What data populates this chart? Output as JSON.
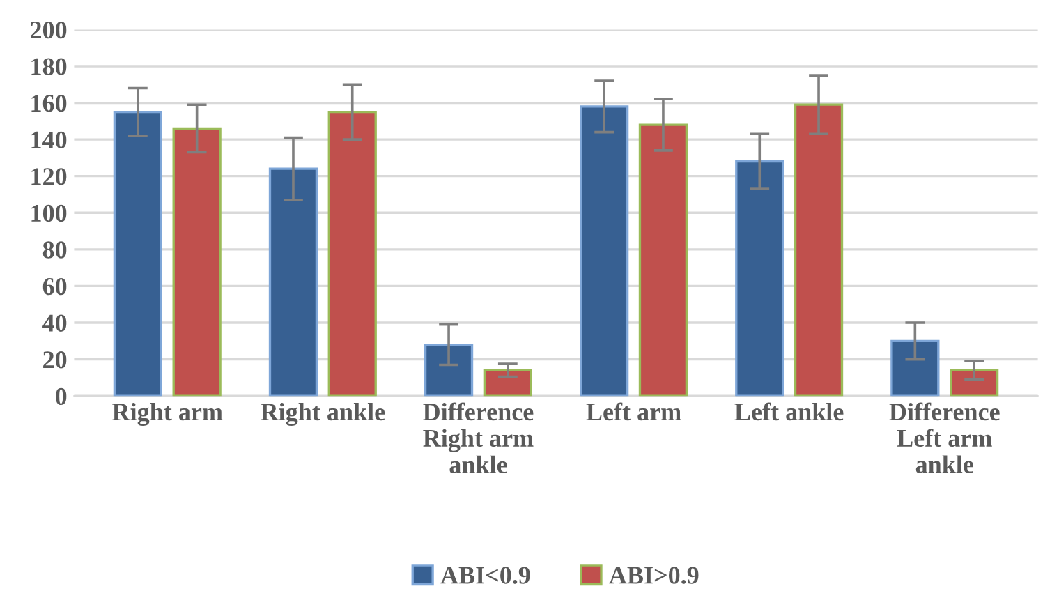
{
  "chart_data": {
    "type": "bar",
    "categories": [
      "Right arm",
      "Right ankle",
      "Difference\nRight arm\nankle",
      "Left arm",
      "Left ankle",
      "Difference\nLeft arm\nankle"
    ],
    "series": [
      {
        "name": "ABI<0.9",
        "color": "#376092",
        "values": [
          155,
          124,
          28,
          158,
          128,
          30
        ],
        "errors": [
          13,
          17,
          11,
          14,
          15,
          10
        ]
      },
      {
        "name": "ABI>0.9",
        "color": "#c0504d",
        "values": [
          146,
          155,
          14,
          148,
          159,
          14
        ],
        "errors": [
          13,
          15,
          3.5,
          14,
          16,
          5
        ]
      }
    ],
    "ylim": [
      0,
      200
    ],
    "yticks": [
      0,
      20,
      40,
      60,
      80,
      100,
      120,
      140,
      160,
      180,
      200
    ],
    "grid": "y",
    "legend": "bottom"
  }
}
